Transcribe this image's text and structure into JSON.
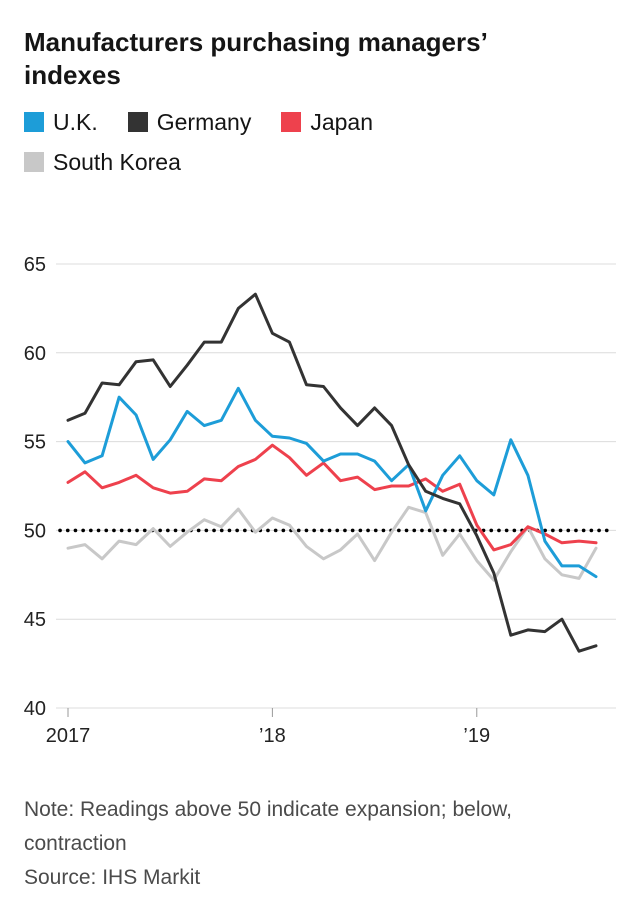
{
  "header": {
    "title": "Manufacturers purchasing managers’ indexes"
  },
  "footer": {
    "note": "Note: Readings above 50 indicate expansion; below, contraction",
    "source": "Source: IHS Markit"
  },
  "chart_data": {
    "type": "line",
    "title": "Manufacturers purchasing managers’ indexes",
    "x_start": "2017-01",
    "x_frequency": "monthly",
    "months": 32,
    "ylim": [
      40,
      65
    ],
    "y_ticks": [
      40,
      45,
      50,
      55,
      60,
      65
    ],
    "x_ticks": [
      {
        "label": "2017",
        "month_index": 0
      },
      {
        "label": "’18",
        "month_index": 12
      },
      {
        "label": "’19",
        "month_index": 24
      }
    ],
    "reference_line": {
      "value": 50,
      "style": "dotted",
      "color": "#000000"
    },
    "grid_color": "#dcdcdc",
    "legend_position": "top",
    "series": [
      {
        "name": "U.K.",
        "color": "#1d9dd8",
        "values": [
          55.0,
          53.8,
          54.2,
          57.5,
          56.5,
          54.0,
          55.1,
          56.7,
          55.9,
          56.2,
          58.0,
          56.2,
          55.3,
          55.2,
          54.9,
          53.9,
          54.3,
          54.3,
          53.9,
          52.8,
          53.7,
          51.1,
          53.1,
          54.2,
          52.8,
          52.0,
          55.1,
          53.1,
          49.4,
          48.0,
          48.0,
          47.4
        ]
      },
      {
        "name": "Germany",
        "color": "#333333",
        "values": [
          56.2,
          56.6,
          58.3,
          58.2,
          59.5,
          59.6,
          58.1,
          59.3,
          60.6,
          60.6,
          62.5,
          63.3,
          61.1,
          60.6,
          58.2,
          58.1,
          56.9,
          55.9,
          56.9,
          55.9,
          53.7,
          52.2,
          51.8,
          51.5,
          49.7,
          47.6,
          44.1,
          44.4,
          44.3,
          45.0,
          43.2,
          43.5
        ]
      },
      {
        "name": "Japan",
        "color": "#ee414d",
        "values": [
          52.7,
          53.3,
          52.4,
          52.7,
          53.1,
          52.4,
          52.1,
          52.2,
          52.9,
          52.8,
          53.6,
          54.0,
          54.8,
          54.1,
          53.1,
          53.8,
          52.8,
          53.0,
          52.3,
          52.5,
          52.5,
          52.9,
          52.2,
          52.6,
          50.3,
          48.9,
          49.2,
          50.2,
          49.8,
          49.3,
          49.4,
          49.3
        ]
      },
      {
        "name": "South Korea",
        "color": "#c8c8c8",
        "values": [
          49.0,
          49.2,
          48.4,
          49.4,
          49.2,
          50.1,
          49.1,
          49.9,
          50.6,
          50.2,
          51.2,
          49.9,
          50.7,
          50.3,
          49.1,
          48.4,
          48.9,
          49.8,
          48.3,
          49.9,
          51.3,
          51.0,
          48.6,
          49.8,
          48.3,
          47.2,
          48.8,
          50.2,
          48.4,
          47.5,
          47.3,
          49.0
        ]
      }
    ]
  }
}
